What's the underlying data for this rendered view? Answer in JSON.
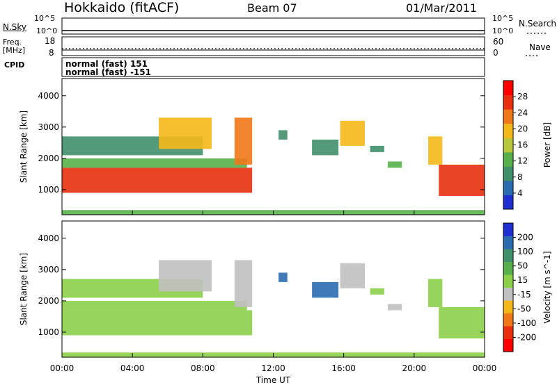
{
  "header": {
    "station": "Hokkaido (fitACF)",
    "beam": "Beam 07",
    "date": "01/Mar/2011"
  },
  "top_panels": {
    "nsky_label": "N.Sky",
    "nsky_ticks": [
      "10^5",
      "10^0"
    ],
    "freq_label_1": "Freq.",
    "freq_label_2": "[MHz]",
    "freq_ticks": [
      "18",
      "8"
    ],
    "nsearch_label": "N.Search",
    "nsearch_ticks": [
      "10^5",
      "10^0"
    ],
    "nave_label": "Nave",
    "nave_ticks": [
      "60",
      "0"
    ],
    "cpid_label": "CPID",
    "cpid_lines": [
      "normal (fast) 151",
      "normal (fast) -151"
    ]
  },
  "chart_data": [
    {
      "type": "heatmap",
      "title": "",
      "xlabel": "Time UT",
      "ylabel": "Slant Range [km]",
      "x_ticks": [
        "00:00",
        "04:00",
        "08:00",
        "12:00",
        "16:00",
        "20:00",
        "00:00"
      ],
      "y_ticks": [
        "1000",
        "2000",
        "3000",
        "4000"
      ],
      "ylim": [
        200,
        4550
      ],
      "colorbar": {
        "label": "Power [dB]",
        "ticks": [
          "4",
          "8",
          "12",
          "16",
          "20",
          "24",
          "28"
        ],
        "range": [
          0,
          32
        ],
        "colors": [
          "#1f2fd0",
          "#2b6bb0",
          "#3f8f6a",
          "#58b04a",
          "#b8c83a",
          "#f5b81a",
          "#f07818",
          "#e83010",
          "#ff0000"
        ]
      },
      "echo_regions": [
        {
          "t_start": 0.0,
          "t_end": 10.8,
          "r_min": 900,
          "r_max": 1700,
          "power_db": 26
        },
        {
          "t_start": 0.0,
          "t_end": 10.5,
          "r_min": 1700,
          "r_max": 2000,
          "power_db": 14
        },
        {
          "t_start": 0.0,
          "t_end": 8.0,
          "r_min": 2100,
          "r_max": 2700,
          "power_db": 10
        },
        {
          "t_start": 5.5,
          "t_end": 8.5,
          "r_min": 2300,
          "r_max": 3300,
          "power_db": 20
        },
        {
          "t_start": 9.8,
          "t_end": 10.8,
          "r_min": 1800,
          "r_max": 3300,
          "power_db": 22
        },
        {
          "t_start": 12.3,
          "t_end": 12.8,
          "r_min": 2600,
          "r_max": 2900,
          "power_db": 8
        },
        {
          "t_start": 14.2,
          "t_end": 15.7,
          "r_min": 2100,
          "r_max": 2600,
          "power_db": 8
        },
        {
          "t_start": 15.8,
          "t_end": 17.2,
          "r_min": 2400,
          "r_max": 3200,
          "power_db": 18
        },
        {
          "t_start": 17.5,
          "t_end": 18.3,
          "r_min": 2200,
          "r_max": 2400,
          "power_db": 8
        },
        {
          "t_start": 18.5,
          "t_end": 19.3,
          "r_min": 1700,
          "r_max": 1900,
          "power_db": 12
        },
        {
          "t_start": 20.8,
          "t_end": 21.6,
          "r_min": 1800,
          "r_max": 2700,
          "power_db": 20
        },
        {
          "t_start": 21.4,
          "t_end": 24.0,
          "r_min": 800,
          "r_max": 1800,
          "power_db": 26
        },
        {
          "t_start": 0.0,
          "t_end": 24.0,
          "r_min": 200,
          "r_max": 350,
          "power_db": 12
        }
      ]
    },
    {
      "type": "heatmap",
      "title": "",
      "xlabel": "Time UT",
      "ylabel": "Slant Range [km]",
      "x_ticks": [
        "00:00",
        "04:00",
        "08:00",
        "12:00",
        "16:00",
        "20:00",
        "00:00"
      ],
      "y_ticks": [
        "1000",
        "2000",
        "3000",
        "4000"
      ],
      "ylim": [
        200,
        4550
      ],
      "colorbar": {
        "label": "Velocity [m s^-1]",
        "ticks": [
          "200",
          "100",
          "50",
          "15",
          "-15",
          "-50",
          "-100",
          "-200"
        ],
        "range": [
          -250,
          250
        ],
        "colors": [
          "#1f2fd0",
          "#2b6bb0",
          "#3f8f6a",
          "#58b04a",
          "#8ccf4a",
          "#c0c0c0",
          "#f5b81a",
          "#f07818",
          "#e83010",
          "#ff0000"
        ]
      },
      "echo_regions": [
        {
          "t_start": 0.0,
          "t_end": 10.8,
          "r_min": 900,
          "r_max": 1700,
          "velocity": 0
        },
        {
          "t_start": 0.0,
          "t_end": 10.5,
          "r_min": 1700,
          "r_max": 2000,
          "velocity": 0
        },
        {
          "t_start": 0.0,
          "t_end": 8.0,
          "r_min": 2100,
          "r_max": 2700,
          "velocity": 0
        },
        {
          "t_start": 5.5,
          "t_end": 8.5,
          "r_min": 2300,
          "r_max": 3300,
          "velocity": -20
        },
        {
          "t_start": 9.8,
          "t_end": 10.8,
          "r_min": 1800,
          "r_max": 3300,
          "velocity": -40
        },
        {
          "t_start": 12.3,
          "t_end": 12.8,
          "r_min": 2600,
          "r_max": 2900,
          "velocity": 180
        },
        {
          "t_start": 14.2,
          "t_end": 15.7,
          "r_min": 2100,
          "r_max": 2600,
          "velocity": 150
        },
        {
          "t_start": 15.8,
          "t_end": 17.2,
          "r_min": 2400,
          "r_max": 3200,
          "velocity": -40
        },
        {
          "t_start": 17.5,
          "t_end": 18.3,
          "r_min": 2200,
          "r_max": 2400,
          "velocity": 30
        },
        {
          "t_start": 18.5,
          "t_end": 19.3,
          "r_min": 1700,
          "r_max": 1900,
          "velocity": -40
        },
        {
          "t_start": 20.8,
          "t_end": 21.6,
          "r_min": 1800,
          "r_max": 2700,
          "velocity": 0
        },
        {
          "t_start": 21.4,
          "t_end": 24.0,
          "r_min": 800,
          "r_max": 1800,
          "velocity": 0
        },
        {
          "t_start": 0.0,
          "t_end": 24.0,
          "r_min": 200,
          "r_max": 350,
          "velocity": 30
        }
      ]
    }
  ]
}
